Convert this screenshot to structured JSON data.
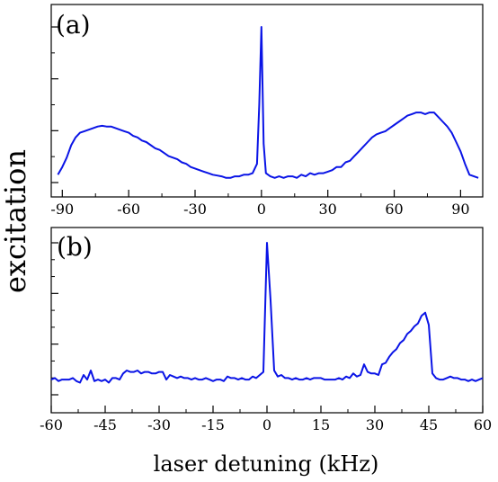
{
  "figure": {
    "ylabel": "excitation",
    "xlabel": "laser detuning (kHz)"
  },
  "chart_data": [
    {
      "type": "line",
      "panel_label": "(a)",
      "xlim": [
        -95,
        100
      ],
      "ylim": [
        0,
        1.05
      ],
      "xticks": [
        "-90",
        "-60",
        "-30",
        "0",
        "30",
        "60",
        "90"
      ],
      "xtick_values": [
        -90,
        -60,
        -30,
        0,
        30,
        60,
        90
      ],
      "y_tick_labels": "none",
      "grid": false,
      "series": [
        {
          "color": "#0a14e6",
          "x": [
            -92,
            -90,
            -88,
            -86,
            -84,
            -82,
            -80,
            -78,
            -76,
            -74,
            -72,
            -70,
            -68,
            -66,
            -64,
            -62,
            -60,
            -58,
            -56,
            -54,
            -52,
            -50,
            -48,
            -46,
            -44,
            -42,
            -40,
            -38,
            -36,
            -34,
            -32,
            -30,
            -28,
            -26,
            -24,
            -22,
            -20,
            -18,
            -16,
            -14,
            -12,
            -10,
            -8,
            -6,
            -4,
            -2,
            -1,
            0,
            1,
            2,
            4,
            6,
            8,
            10,
            12,
            14,
            16,
            18,
            20,
            22,
            24,
            26,
            28,
            30,
            32,
            34,
            36,
            38,
            40,
            42,
            44,
            46,
            48,
            50,
            52,
            54,
            56,
            58,
            60,
            62,
            64,
            66,
            68,
            70,
            72,
            74,
            76,
            78,
            80,
            82,
            84,
            86,
            88,
            90,
            92,
            94,
            96,
            98
          ],
          "y": [
            0.05,
            0.1,
            0.16,
            0.24,
            0.29,
            0.32,
            0.33,
            0.34,
            0.35,
            0.36,
            0.365,
            0.36,
            0.36,
            0.35,
            0.34,
            0.33,
            0.32,
            0.3,
            0.29,
            0.27,
            0.26,
            0.24,
            0.22,
            0.21,
            0.19,
            0.17,
            0.16,
            0.15,
            0.13,
            0.12,
            0.1,
            0.09,
            0.08,
            0.07,
            0.06,
            0.05,
            0.045,
            0.04,
            0.03,
            0.03,
            0.04,
            0.04,
            0.05,
            0.05,
            0.06,
            0.12,
            0.5,
            1.0,
            0.25,
            0.06,
            0.04,
            0.03,
            0.04,
            0.03,
            0.04,
            0.04,
            0.03,
            0.05,
            0.04,
            0.06,
            0.05,
            0.06,
            0.06,
            0.07,
            0.08,
            0.1,
            0.1,
            0.13,
            0.14,
            0.17,
            0.2,
            0.23,
            0.26,
            0.29,
            0.31,
            0.32,
            0.33,
            0.35,
            0.37,
            0.39,
            0.41,
            0.43,
            0.44,
            0.45,
            0.45,
            0.44,
            0.45,
            0.45,
            0.42,
            0.39,
            0.36,
            0.32,
            0.26,
            0.2,
            0.12,
            0.05,
            0.04,
            0.03
          ]
        }
      ]
    },
    {
      "type": "line",
      "panel_label": "(b)",
      "xlim": [
        -60,
        60
      ],
      "ylim": [
        0,
        1.05
      ],
      "xticks": [
        "-60",
        "-45",
        "-30",
        "-15",
        "0",
        "15",
        "30",
        "45",
        "60"
      ],
      "xtick_values": [
        -60,
        -45,
        -30,
        -15,
        0,
        15,
        30,
        45,
        60
      ],
      "y_tick_labels": "none",
      "grid": false,
      "series": [
        {
          "color": "#0a14e6",
          "x": [
            -60,
            -59,
            -58,
            -57,
            -56,
            -55,
            -54,
            -53,
            -52,
            -51,
            -50,
            -49,
            -48,
            -47,
            -46,
            -45,
            -44,
            -43,
            -42,
            -41,
            -40,
            -39,
            -38,
            -37,
            -36,
            -35,
            -34,
            -33,
            -32,
            -31,
            -30,
            -29,
            -28,
            -27,
            -26,
            -25,
            -24,
            -23,
            -22,
            -21,
            -20,
            -19,
            -18,
            -17,
            -16,
            -15,
            -14,
            -13,
            -12,
            -11,
            -10,
            -9,
            -8,
            -7,
            -6,
            -5,
            -4,
            -3,
            -2,
            -1,
            0,
            1,
            2,
            3,
            4,
            5,
            6,
            7,
            8,
            9,
            10,
            11,
            12,
            13,
            14,
            15,
            16,
            17,
            18,
            19,
            20,
            21,
            22,
            23,
            24,
            25,
            26,
            27,
            28,
            29,
            30,
            31,
            32,
            33,
            34,
            35,
            36,
            37,
            38,
            39,
            40,
            41,
            42,
            43,
            44,
            45,
            46,
            47,
            48,
            49,
            50,
            51,
            52,
            53,
            54,
            55,
            56,
            57,
            58,
            59,
            60
          ],
          "y": [
            0.1,
            0.11,
            0.09,
            0.1,
            0.1,
            0.1,
            0.11,
            0.09,
            0.08,
            0.13,
            0.1,
            0.16,
            0.09,
            0.1,
            0.09,
            0.1,
            0.08,
            0.11,
            0.11,
            0.1,
            0.14,
            0.16,
            0.15,
            0.15,
            0.16,
            0.14,
            0.15,
            0.15,
            0.14,
            0.14,
            0.15,
            0.15,
            0.1,
            0.13,
            0.12,
            0.11,
            0.12,
            0.11,
            0.11,
            0.1,
            0.11,
            0.1,
            0.1,
            0.11,
            0.1,
            0.09,
            0.1,
            0.1,
            0.09,
            0.12,
            0.11,
            0.11,
            0.1,
            0.11,
            0.1,
            0.1,
            0.12,
            0.11,
            0.13,
            0.15,
            1.0,
            0.62,
            0.16,
            0.12,
            0.13,
            0.11,
            0.11,
            0.1,
            0.11,
            0.1,
            0.1,
            0.11,
            0.1,
            0.11,
            0.11,
            0.11,
            0.1,
            0.1,
            0.1,
            0.1,
            0.11,
            0.1,
            0.12,
            0.11,
            0.14,
            0.12,
            0.13,
            0.2,
            0.15,
            0.14,
            0.14,
            0.13,
            0.2,
            0.21,
            0.25,
            0.28,
            0.3,
            0.34,
            0.36,
            0.4,
            0.42,
            0.45,
            0.47,
            0.52,
            0.54,
            0.46,
            0.14,
            0.11,
            0.1,
            0.1,
            0.11,
            0.12,
            0.11,
            0.11,
            0.1,
            0.1,
            0.09,
            0.1,
            0.09,
            0.1,
            0.11
          ]
        }
      ]
    }
  ]
}
